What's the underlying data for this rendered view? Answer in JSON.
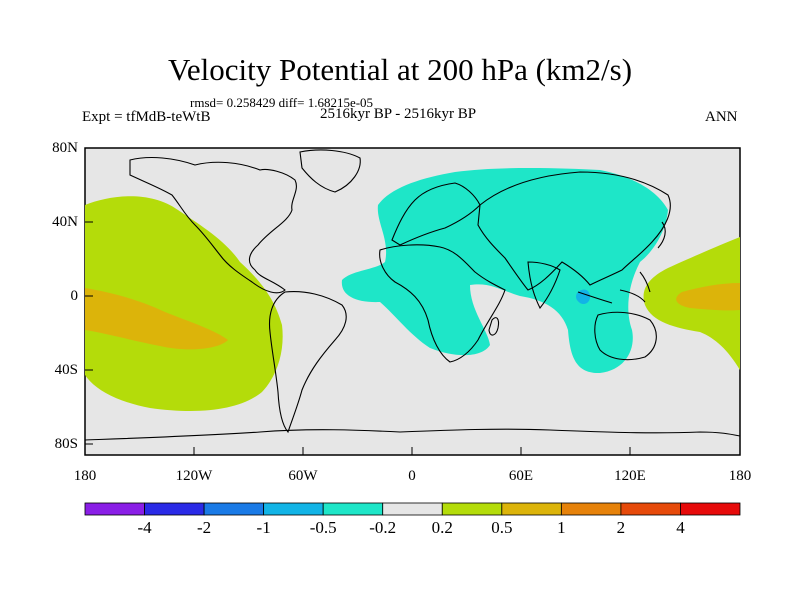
{
  "title": "Velocity Potential at 200 hPa (km2/s)",
  "stats": "rmsd= 0.258429 diff= 1.68215e-05",
  "experiment": "Expt = tfMdB-teWtB",
  "period": "2516kyr BP - 2516kyr BP",
  "season": "ANN",
  "lat_labels": [
    "80N",
    "40N",
    "0",
    "40S",
    "80S"
  ],
  "lon_labels": [
    "180",
    "120W",
    "60W",
    "0",
    "60E",
    "120E",
    "180"
  ],
  "colorbar": {
    "colors": [
      "#8a1ee6",
      "#2a2ae6",
      "#1a7ae6",
      "#12b4e6",
      "#1ee6c8",
      "#e6e6e6",
      "#b4dc0a",
      "#dcb40a",
      "#e6820a",
      "#e64a0a",
      "#e60a0a"
    ],
    "labels": [
      "-4",
      "-2",
      "-1",
      "-0.5",
      "-0.2",
      "0.2",
      "0.5",
      "1",
      "2",
      "4"
    ]
  },
  "colors": {
    "background_field": "#e6e6e6",
    "positive_low": "#b4dc0a",
    "positive_mid": "#dcb40a",
    "negative_low": "#1ee6c8",
    "negative_mid": "#12b4e6"
  }
}
